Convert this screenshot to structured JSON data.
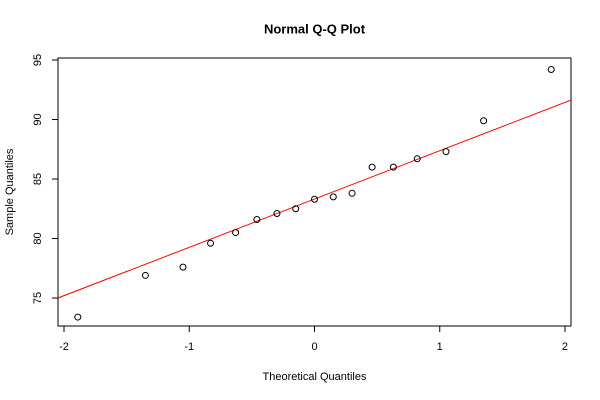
{
  "chart_data": {
    "type": "scatter",
    "title": "Normal Q-Q Plot",
    "x_label": "Theoretical Quantiles",
    "y_label": "Sample Quantiles",
    "x": [
      -1.89,
      -1.35,
      -1.05,
      -0.83,
      -0.63,
      -0.46,
      -0.3,
      -0.15,
      0.0,
      0.15,
      0.3,
      0.46,
      0.63,
      0.82,
      1.05,
      1.35,
      1.89
    ],
    "values": [
      73.4,
      76.9,
      77.6,
      79.6,
      80.5,
      81.6,
      82.1,
      82.5,
      83.3,
      83.5,
      83.8,
      86.0,
      86.0,
      86.7,
      87.3,
      89.9,
      94.2
    ],
    "color": "#000000",
    "reference_line": {
      "intercept": 83.32,
      "slope": 4.06,
      "color": "#ff0000"
    },
    "xlim": [
      -2.048,
      2.048
    ],
    "ylim": [
      72.65,
      95.17
    ],
    "xticks": [
      -2,
      -1,
      0,
      1,
      2
    ],
    "yticks": [
      75,
      80,
      85,
      90,
      95
    ],
    "grid": false
  }
}
